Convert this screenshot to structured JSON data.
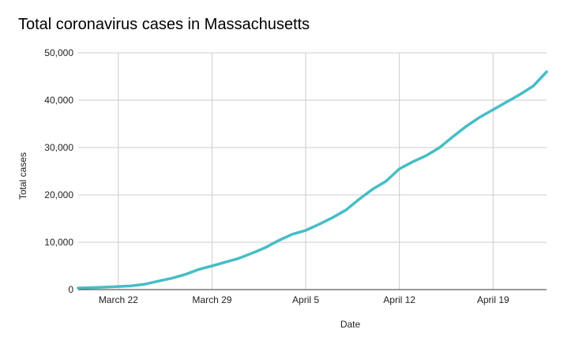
{
  "chart_data": {
    "type": "line",
    "title": "Total coronavirus cases in Massachusetts",
    "xlabel": "Date",
    "ylabel": "Total cases",
    "x_tick_labels": [
      "March 22",
      "March 29",
      "April 5",
      "April 12",
      "April 19"
    ],
    "y_tick_labels": [
      "0",
      "10,000",
      "20,000",
      "30,000",
      "40,000",
      "50,000"
    ],
    "y_ticks": [
      0,
      10000,
      20000,
      30000,
      40000,
      50000
    ],
    "ylim": [
      0,
      50000
    ],
    "grid": true,
    "line_color": "#46bdc6",
    "series": [
      {
        "x": [
          "2020-03-19",
          "2020-03-20",
          "2020-03-21",
          "2020-03-22",
          "2020-03-23",
          "2020-03-24",
          "2020-03-25",
          "2020-03-26",
          "2020-03-27",
          "2020-03-28",
          "2020-03-29",
          "2020-03-30",
          "2020-03-31",
          "2020-04-01",
          "2020-04-02",
          "2020-04-03",
          "2020-04-04",
          "2020-04-05",
          "2020-04-06",
          "2020-04-07",
          "2020-04-08",
          "2020-04-09",
          "2020-04-10",
          "2020-04-11",
          "2020-04-12",
          "2020-04-13",
          "2020-04-14",
          "2020-04-15",
          "2020-04-16",
          "2020-04-17",
          "2020-04-18",
          "2020-04-19",
          "2020-04-20",
          "2020-04-21",
          "2020-04-22",
          "2020-04-23"
        ],
        "values": [
          330,
          420,
          520,
          650,
          800,
          1150,
          1800,
          2400,
          3200,
          4250,
          5000,
          5800,
          6600,
          7700,
          8900,
          10400,
          11700,
          12500,
          13800,
          15200,
          16800,
          19100,
          21200,
          22900,
          25500,
          27000,
          28300,
          30000,
          32300,
          34500,
          36400,
          38000,
          39600,
          41200,
          43000,
          46000
        ]
      }
    ]
  }
}
